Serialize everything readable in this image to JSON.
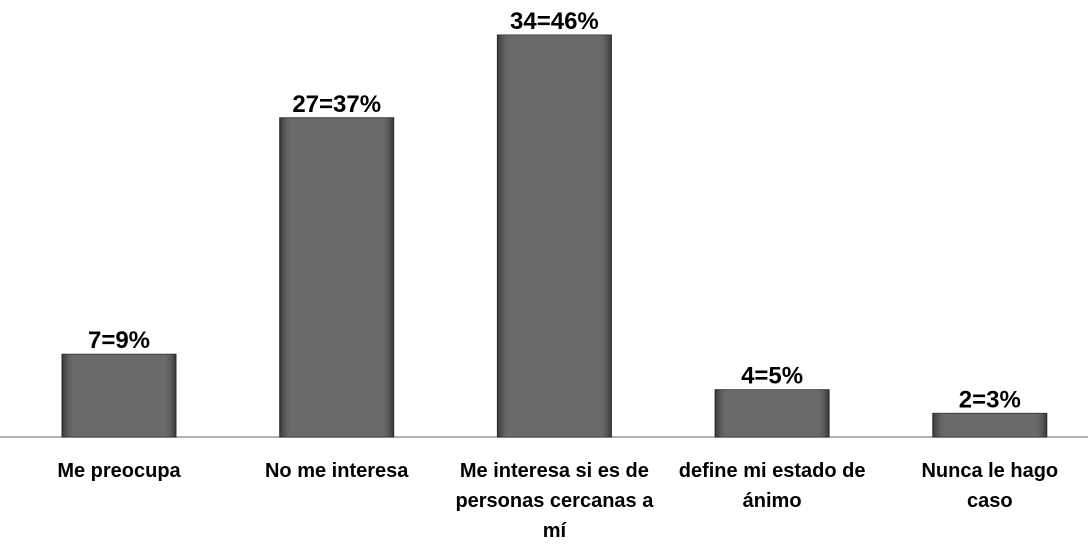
{
  "chart_data": {
    "type": "bar",
    "categories": [
      "Me preocupa",
      "No me interesa",
      "Me interesa si es de personas cercanas a mí",
      "define mi estado de ánimo",
      "Nunca le hago caso"
    ],
    "values": [
      7,
      27,
      34,
      4,
      2
    ],
    "value_labels": [
      "7=9%",
      "27=37%",
      "34=46%",
      "4=5%",
      "2=3%"
    ],
    "color": "#555555"
  }
}
